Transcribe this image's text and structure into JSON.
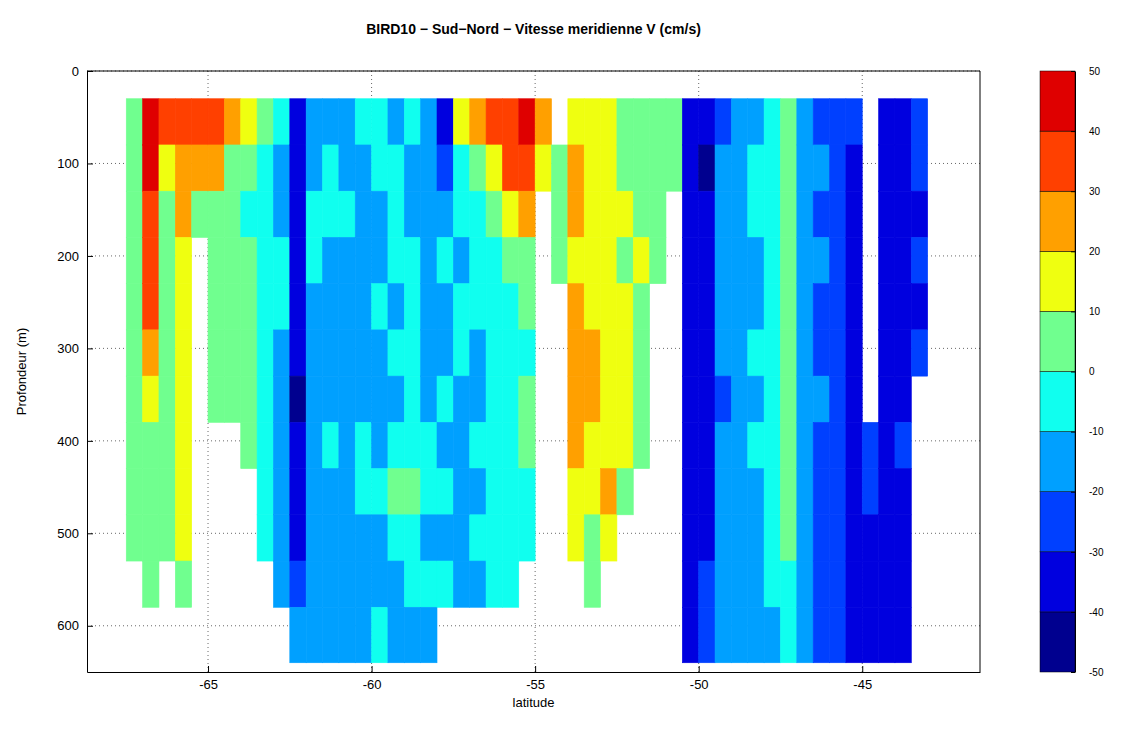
{
  "chart_data": {
    "type": "heatmap",
    "title": "BIRD10 − Sud−Nord − Vitesse meridienne V (cm/s)",
    "xlabel": "latitude",
    "ylabel": "Profondeur (m)",
    "xlim": [
      -68.7,
      -41.4
    ],
    "ylim": [
      0,
      650
    ],
    "xticks": [
      -65,
      -60,
      -55,
      -50,
      -45
    ],
    "yticks": [
      0,
      100,
      200,
      300,
      400,
      500,
      600
    ],
    "grid": true,
    "x_bins": [
      -67.5,
      -67,
      -66.5,
      -66,
      -65.5,
      -65,
      -64.5,
      -64,
      -63.5,
      -63,
      -62.5,
      -62,
      -61.5,
      -61,
      -60.5,
      -60,
      -59.5,
      -59,
      -58.5,
      -58,
      -57.5,
      -57,
      -56.5,
      -56,
      -55.5,
      -55,
      -54.5,
      -54,
      -53.5,
      -53,
      -52.5,
      -52,
      -51.5,
      -51,
      -50.5,
      -50,
      -49.5,
      -49,
      -48.5,
      -48,
      -47.5,
      -47,
      -46.5,
      -46,
      -45.5,
      -45,
      -44.5,
      -44,
      -43.5,
      -43
    ],
    "y_bins": [
      30,
      80,
      130,
      180,
      230,
      280,
      330,
      380,
      430,
      480,
      530,
      580,
      640
    ],
    "cells": [
      [
        5,
        5,
        5,
        0,
        0,
        0,
        0,
        5,
        0,
        0,
        null,
        null
      ],
      [
        45,
        40,
        35,
        30,
        30,
        25,
        15,
        5,
        5,
        0,
        0,
        null
      ],
      [
        30,
        15,
        5,
        5,
        0,
        0,
        0,
        0,
        0,
        0,
        null,
        null
      ],
      [
        35,
        25,
        20,
        15,
        15,
        15,
        15,
        15,
        15,
        10,
        5,
        null
      ],
      [
        30,
        25,
        5,
        null,
        null,
        null,
        null,
        null,
        null,
        null,
        null,
        null
      ],
      [
        30,
        20,
        5,
        0,
        0,
        0,
        5,
        null,
        null,
        null,
        null,
        null
      ],
      [
        20,
        5,
        0,
        0,
        5,
        5,
        5,
        null,
        null,
        null,
        null,
        null
      ],
      [
        10,
        0,
        -5,
        0,
        0,
        5,
        0,
        0,
        null,
        null,
        null,
        null
      ],
      [
        0,
        -10,
        -10,
        -5,
        -5,
        -5,
        -10,
        -10,
        -10,
        -10,
        null,
        null
      ],
      [
        -10,
        -15,
        -15,
        -10,
        -10,
        -15,
        -15,
        -15,
        -15,
        -15,
        -15,
        null
      ],
      [
        -35,
        -35,
        -40,
        -40,
        -40,
        -40,
        -45,
        -40,
        -40,
        -35,
        -30,
        -20
      ],
      [
        -15,
        -15,
        -10,
        -10,
        -15,
        -15,
        -20,
        -15,
        -20,
        -15,
        -15,
        -20
      ],
      [
        -15,
        -10,
        -10,
        -15,
        -15,
        -15,
        -15,
        -10,
        -15,
        -15,
        -20,
        -20
      ],
      [
        -20,
        -15,
        -10,
        -15,
        -15,
        -20,
        -15,
        -15,
        -15,
        -15,
        -20,
        -20
      ],
      [
        -10,
        -15,
        -20,
        -15,
        -15,
        -15,
        -15,
        -10,
        -10,
        -15,
        -15,
        -15
      ],
      [
        -10,
        -10,
        -15,
        -15,
        -10,
        -15,
        -15,
        -15,
        -10,
        -15,
        -15,
        -10
      ],
      [
        -15,
        -10,
        -10,
        -10,
        -15,
        -10,
        -15,
        -10,
        0,
        -10,
        -15,
        -15
      ],
      [
        -10,
        -15,
        -15,
        -10,
        -5,
        -10,
        -10,
        -10,
        5,
        -10,
        -10,
        -15
      ],
      [
        -20,
        -20,
        -15,
        -15,
        -20,
        -15,
        -15,
        -10,
        -10,
        -15,
        -10,
        -15
      ],
      [
        -40,
        -25,
        -15,
        -10,
        -15,
        -15,
        -10,
        -15,
        -10,
        -15,
        -10,
        null
      ],
      [
        15,
        -5,
        -10,
        -15,
        -10,
        -10,
        -15,
        -15,
        -15,
        -20,
        -15,
        null
      ],
      [
        20,
        5,
        -10,
        -10,
        -10,
        -15,
        -15,
        -10,
        -15,
        -10,
        -15,
        null
      ],
      [
        30,
        15,
        0,
        -5,
        -10,
        -10,
        -5,
        -10,
        -10,
        -10,
        -10,
        null
      ],
      [
        35,
        30,
        10,
        0,
        -5,
        -5,
        -5,
        -5,
        -10,
        -5,
        -5,
        null
      ],
      [
        40,
        35,
        25,
        5,
        0,
        -5,
        0,
        0,
        -5,
        -5,
        null,
        null
      ],
      [
        20,
        10,
        null,
        null,
        null,
        null,
        null,
        null,
        null,
        null,
        null,
        null
      ],
      [
        null,
        5,
        5,
        5,
        null,
        null,
        null,
        null,
        null,
        null,
        null,
        null
      ],
      [
        10,
        20,
        20,
        15,
        20,
        25,
        25,
        20,
        15,
        10,
        null,
        null
      ],
      [
        15,
        15,
        15,
        10,
        15,
        20,
        20,
        15,
        15,
        5,
        0,
        null
      ],
      [
        10,
        15,
        15,
        10,
        15,
        15,
        15,
        15,
        20,
        10,
        null,
        null
      ],
      [
        0,
        5,
        10,
        5,
        10,
        10,
        15,
        10,
        5,
        null,
        null,
        null
      ],
      [
        5,
        5,
        5,
        10,
        5,
        5,
        5,
        5,
        null,
        null,
        null,
        null
      ],
      [
        5,
        5,
        0,
        5,
        null,
        null,
        null,
        null,
        null,
        null,
        null,
        null
      ],
      [
        5,
        0,
        null,
        null,
        null,
        null,
        null,
        null,
        null,
        null,
        null,
        null
      ],
      [
        -35,
        -35,
        -35,
        -35,
        -35,
        -40,
        -35,
        -35,
        -35,
        -35,
        -35,
        -35
      ],
      [
        -40,
        -45,
        -40,
        -40,
        -40,
        -40,
        -40,
        -40,
        -40,
        -35,
        -30,
        -30
      ],
      [
        -25,
        -20,
        -20,
        -20,
        -20,
        -20,
        -25,
        -20,
        -20,
        -20,
        -20,
        -20
      ],
      [
        -15,
        -15,
        -20,
        -15,
        -15,
        -15,
        -20,
        -15,
        -15,
        -20,
        -15,
        -15
      ],
      [
        -15,
        -10,
        -10,
        -15,
        -15,
        -10,
        -15,
        -10,
        -15,
        -15,
        -20,
        -15
      ],
      [
        -5,
        -10,
        -5,
        -10,
        -5,
        -10,
        -5,
        -10,
        -10,
        -5,
        -10,
        -15
      ],
      [
        5,
        0,
        5,
        0,
        5,
        0,
        5,
        0,
        0,
        5,
        -5,
        -10
      ],
      [
        -15,
        -20,
        -15,
        -20,
        -15,
        -15,
        -20,
        -15,
        -20,
        -20,
        -20,
        -20
      ],
      [
        -25,
        -20,
        -25,
        -20,
        -25,
        -25,
        -20,
        -25,
        -25,
        -25,
        -25,
        -25
      ],
      [
        -25,
        -30,
        -25,
        -30,
        -25,
        -30,
        -30,
        -30,
        -30,
        -30,
        -30,
        -30
      ],
      [
        -30,
        -35,
        -35,
        -35,
        -40,
        -35,
        -40,
        -35,
        -35,
        -40,
        -35,
        -40
      ],
      [
        null,
        null,
        null,
        null,
        null,
        null,
        null,
        -30,
        -30,
        -35,
        -35,
        -35
      ],
      [
        -35,
        -35,
        -40,
        -35,
        -40,
        -35,
        -40,
        -40,
        -35,
        -40,
        -40,
        -35
      ],
      [
        -35,
        -40,
        -35,
        -40,
        -35,
        -40,
        -35,
        -30,
        -35,
        -35,
        -35,
        -40
      ],
      [
        -30,
        -30,
        -35,
        -30,
        -35,
        -30,
        null,
        null,
        null,
        null,
        null,
        null
      ]
    ],
    "colorbar": {
      "range": [
        -50,
        50
      ],
      "ticks": [
        -50,
        -40,
        -30,
        -20,
        -10,
        0,
        10,
        20,
        30,
        40,
        50
      ],
      "colors": [
        "#00008f",
        "#0000df",
        "#0040ff",
        "#00a0ff",
        "#10ffef",
        "#70ff8f",
        "#efff10",
        "#ffa000",
        "#ff4000",
        "#df0000"
      ]
    }
  }
}
